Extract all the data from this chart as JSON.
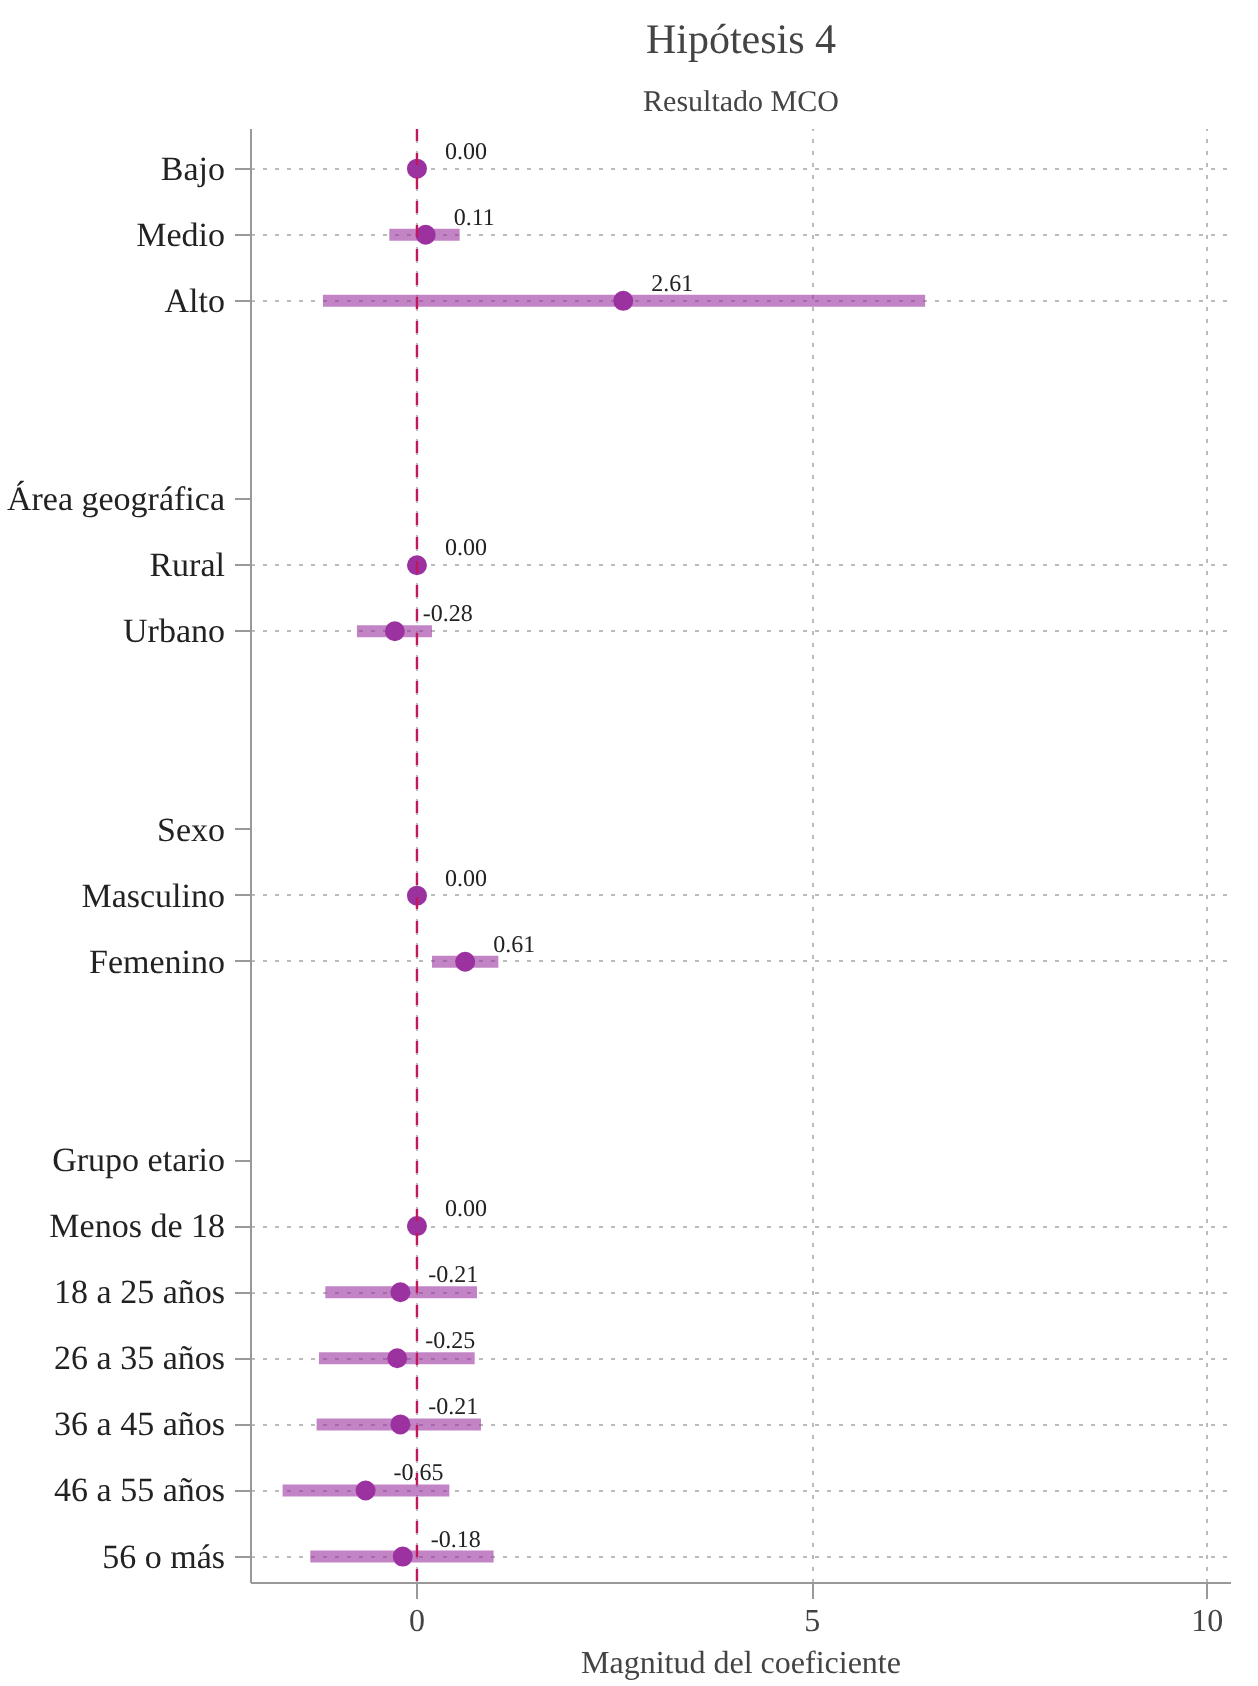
{
  "chart_data": {
    "type": "scatter",
    "orientation": "horizontal",
    "title": "Hipótesis 4",
    "subtitle": "Resultado MCO",
    "xlabel": "Magnitud del coeficiente",
    "categories": [
      "Bajo",
      "Medio",
      "Alto",
      null,
      null,
      "Área geográfica",
      "Rural",
      "Urbano",
      null,
      null,
      "Sexo",
      "Masculino",
      "Femenino",
      null,
      null,
      "Grupo etario",
      "Menos de 18",
      "18 a 25 años",
      "26 a 35 años",
      "36 a 45 años",
      "46 a 55 años",
      "56 o más"
    ],
    "series": [
      {
        "color": "#9b32a0",
        "values": [
          0,
          0.11,
          2.61,
          null,
          null,
          null,
          0,
          -0.28,
          null,
          null,
          null,
          0,
          0.61,
          null,
          null,
          null,
          0,
          -0.21,
          -0.25,
          -0.21,
          -0.65,
          -0.18
        ],
        "errors": [
          null,
          [
            -0.35,
            0.54
          ],
          [
            -1.19,
            6.43
          ],
          null,
          null,
          null,
          null,
          [
            -0.76,
            0.19
          ],
          null,
          null,
          null,
          null,
          [
            0.19,
            1.03
          ],
          null,
          null,
          null,
          null,
          [
            -1.16,
            0.76
          ],
          [
            -1.24,
            0.73
          ],
          [
            -1.27,
            0.81
          ],
          [
            -1.7,
            0.41
          ],
          [
            -1.35,
            0.97
          ]
        ],
        "value_labels": [
          "0.00",
          "0.11",
          "2.61",
          null,
          null,
          null,
          "0.00",
          "-0.28",
          null,
          null,
          null,
          "0.00",
          "0.61",
          null,
          null,
          null,
          "0.00",
          "-0.21",
          "-0.25",
          "-0.21",
          "-0.65",
          "-0.18"
        ]
      }
    ],
    "xlim": [
      -2.1,
      10.3
    ],
    "xticks": [
      0,
      5,
      10
    ],
    "grid": true,
    "marker": "circle",
    "ref_lines": [
      {
        "axis": "x",
        "value": 0,
        "color": "#c2185b",
        "line_style": "dashed"
      }
    ]
  }
}
